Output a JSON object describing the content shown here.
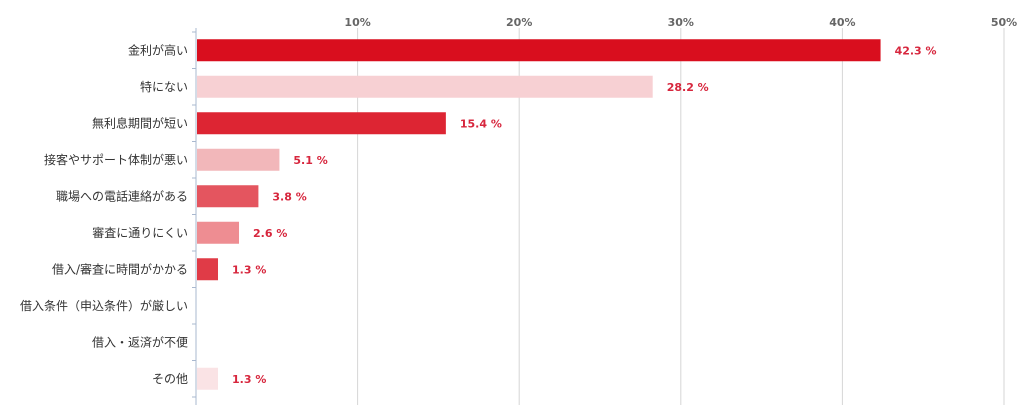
{
  "chart_data": {
    "type": "bar",
    "orientation": "horizontal",
    "categories": [
      "金利が高い",
      "特にない",
      "無利息期間が短い",
      "接客やサポート体制が悪い",
      "職場への電話連絡がある",
      "審査に通りにくい",
      "借入/審査に時間がかかる",
      "借入条件（申込条件）が厳しい",
      "借入・返済が不便",
      "その他"
    ],
    "values": [
      42.3,
      28.2,
      15.4,
      5.1,
      3.8,
      2.6,
      1.3,
      0,
      0,
      1.3
    ],
    "value_labels": [
      "42.3 %",
      "28.2 %",
      "15.4 %",
      "5.1 %",
      "3.8 %",
      "2.6 %",
      "1.3 %",
      "",
      "",
      "1.3 %"
    ],
    "colors": [
      "#d90e1e",
      "#f7d0d3",
      "#dd2533",
      "#f2b7ba",
      "#e4555f",
      "#ee8d92",
      "#e03b47",
      "#ffffff",
      "#ffffff",
      "#fae3e5"
    ],
    "xlim": [
      0,
      50
    ],
    "xticks": [
      10,
      20,
      30,
      40,
      50
    ],
    "xtick_labels": [
      "10%",
      "20%",
      "30%",
      "40%",
      "50%"
    ],
    "grid": true,
    "axis_color": "#a9b8cf",
    "grid_color": "#d6d6d6",
    "label_color": "#d7263d",
    "title": "",
    "xlabel": "",
    "ylabel": ""
  }
}
